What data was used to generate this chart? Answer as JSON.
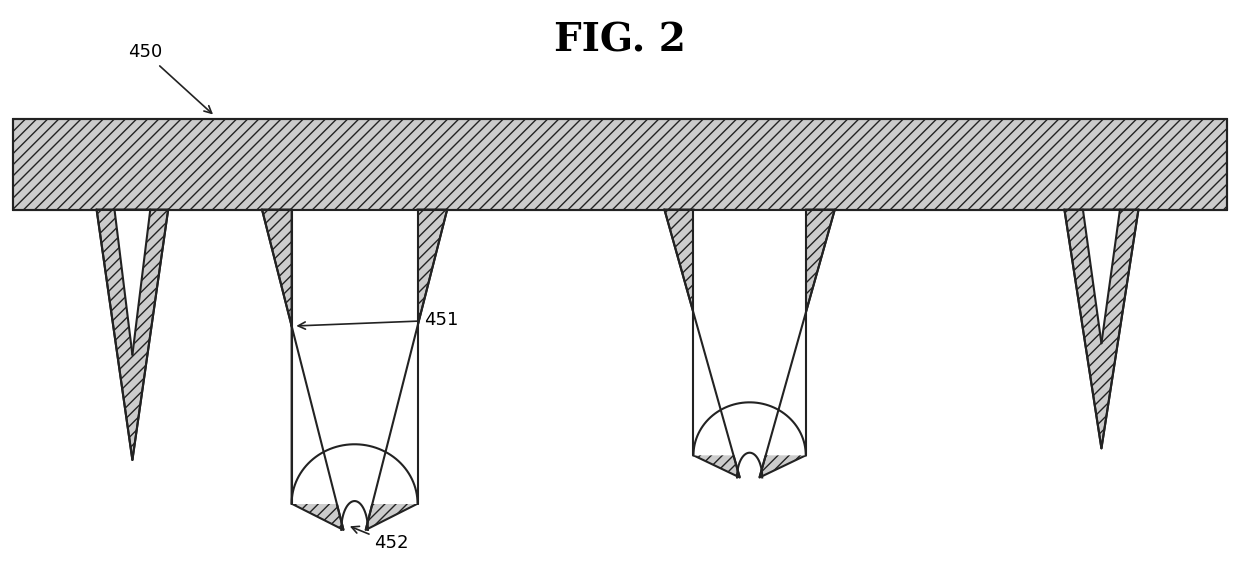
{
  "title": "FIG. 2",
  "title_fontsize": 28,
  "title_fontweight": "bold",
  "bg_color": "#ffffff",
  "fill_color": "#cccccc",
  "line_color": "#222222",
  "line_width": 1.5,
  "label_450": "450",
  "label_451": "451",
  "label_452": "452",
  "xlim": [
    0,
    10
  ],
  "ylim": [
    0,
    1
  ]
}
